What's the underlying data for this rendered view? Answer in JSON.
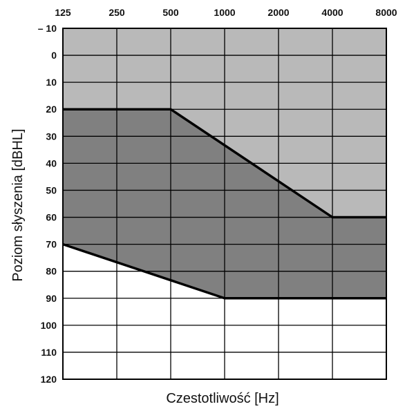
{
  "chart_data": {
    "type": "area",
    "title": "",
    "xlabel": "Czestotliwość [Hz]",
    "ylabel": "Poziom słyszenia [dBHL]",
    "x_scale": "log2",
    "y_inverted": true,
    "x_ticks": [
      125,
      250,
      500,
      1000,
      2000,
      4000,
      8000
    ],
    "x_tick_labels": [
      "125",
      "250",
      "500",
      "1000",
      "2000",
      "4000",
      "8000"
    ],
    "y_ticks": [
      -10,
      0,
      10,
      20,
      30,
      40,
      50,
      60,
      70,
      80,
      90,
      100,
      110,
      120
    ],
    "y_tick_labels": [
      "– 10",
      "0",
      "10",
      "20",
      "30",
      "40",
      "50",
      "60",
      "70",
      "80",
      "90",
      "100",
      "110",
      "120"
    ],
    "xlim": [
      125,
      8000
    ],
    "ylim": [
      -10,
      120
    ],
    "grid": true,
    "regions": [
      {
        "fill": "#b9b9b9",
        "upper": [
          [
            125,
            -10
          ],
          [
            8000,
            -10
          ]
        ],
        "lower": [
          [
            125,
            20
          ],
          [
            500,
            20
          ],
          [
            4000,
            60
          ],
          [
            8000,
            60
          ]
        ]
      },
      {
        "fill": "#808080",
        "upper": [
          [
            125,
            20
          ],
          [
            500,
            20
          ],
          [
            4000,
            60
          ],
          [
            8000,
            60
          ]
        ],
        "lower": [
          [
            125,
            70
          ],
          [
            1000,
            90
          ],
          [
            8000,
            90
          ]
        ]
      }
    ],
    "series": [
      {
        "values": [
          [
            125,
            20
          ],
          [
            500,
            20
          ],
          [
            4000,
            60
          ],
          [
            8000,
            60
          ]
        ]
      },
      {
        "values": [
          [
            125,
            70
          ],
          [
            1000,
            90
          ],
          [
            8000,
            90
          ]
        ]
      }
    ],
    "colors": {
      "light_band": "#b9b9b9",
      "dark_band": "#808080",
      "grid": "#000000",
      "line": "#000000"
    }
  }
}
